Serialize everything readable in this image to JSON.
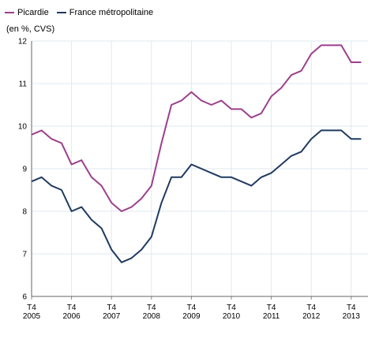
{
  "chart_data": {
    "type": "line",
    "title": "",
    "unit_label": "(en %, CVS)",
    "legend_position": "top-left",
    "grid": true,
    "ylim": [
      6,
      12
    ],
    "y_ticks": [
      "6",
      "7",
      "8",
      "9",
      "10",
      "11",
      "12"
    ],
    "x_start": "T4 2005",
    "x_ticks": [
      {
        "label": [
          "T4",
          "2005"
        ],
        "index": 0
      },
      {
        "label": [
          "T4",
          "2006"
        ],
        "index": 4
      },
      {
        "label": [
          "T4",
          "2007"
        ],
        "index": 8
      },
      {
        "label": [
          "T4",
          "2008"
        ],
        "index": 12
      },
      {
        "label": [
          "T4",
          "2009"
        ],
        "index": 16
      },
      {
        "label": [
          "T4",
          "2010"
        ],
        "index": 20
      },
      {
        "label": [
          "T4",
          "2011"
        ],
        "index": 24
      },
      {
        "label": [
          "T4",
          "2012"
        ],
        "index": 28
      },
      {
        "label": [
          "T4",
          "2013"
        ],
        "index": 32
      }
    ],
    "series": [
      {
        "name": "Picardie",
        "color": "#9c3f8c",
        "values": [
          9.8,
          9.9,
          9.7,
          9.6,
          9.1,
          9.2,
          8.8,
          8.6,
          8.2,
          8.0,
          8.1,
          8.3,
          8.6,
          9.6,
          10.5,
          10.6,
          10.8,
          10.6,
          10.5,
          10.6,
          10.4,
          10.4,
          10.2,
          10.3,
          10.7,
          10.9,
          11.2,
          11.3,
          11.7,
          11.9,
          11.9,
          11.9,
          11.5,
          11.5
        ]
      },
      {
        "name": "France métropolitaine",
        "color": "#1f3a60",
        "values": [
          8.7,
          8.8,
          8.6,
          8.5,
          8.0,
          8.1,
          7.8,
          7.6,
          7.1,
          6.8,
          6.9,
          7.1,
          7.4,
          8.2,
          8.8,
          8.8,
          9.1,
          9.0,
          8.9,
          8.8,
          8.8,
          8.7,
          8.6,
          8.8,
          8.9,
          9.1,
          9.3,
          9.4,
          9.7,
          9.9,
          9.9,
          9.9,
          9.7,
          9.7
        ]
      }
    ]
  }
}
